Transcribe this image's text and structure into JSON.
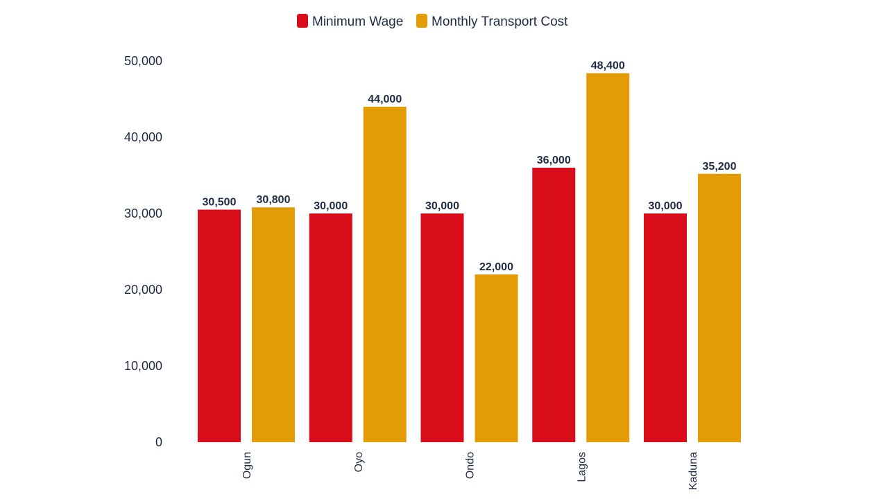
{
  "chart_data": {
    "type": "bar",
    "categories": [
      "Ogun",
      "Oyo",
      "Ondo",
      "Lagos",
      "Kaduna"
    ],
    "series": [
      {
        "name": "Minimum Wage",
        "color": "#d90d1a",
        "values": [
          30500,
          30000,
          30000,
          36000,
          30000
        ],
        "labels": [
          "30,500",
          "30,000",
          "30,000",
          "36,000",
          "30,000"
        ]
      },
      {
        "name": "Monthly Transport Cost",
        "color": "#e39b06",
        "values": [
          30800,
          44000,
          22000,
          48400,
          35200
        ],
        "labels": [
          "30,800",
          "44,000",
          "22,000",
          "48,400",
          "35,200"
        ]
      }
    ],
    "ylim": [
      0,
      50000
    ],
    "yticks": [
      0,
      10000,
      20000,
      30000,
      40000,
      50000
    ],
    "ytick_labels": [
      "0",
      "10,000",
      "20,000",
      "30,000",
      "40,000",
      "50,000"
    ],
    "legend_position": "top-center",
    "grid": false,
    "category_label_rotation": "vertical"
  }
}
